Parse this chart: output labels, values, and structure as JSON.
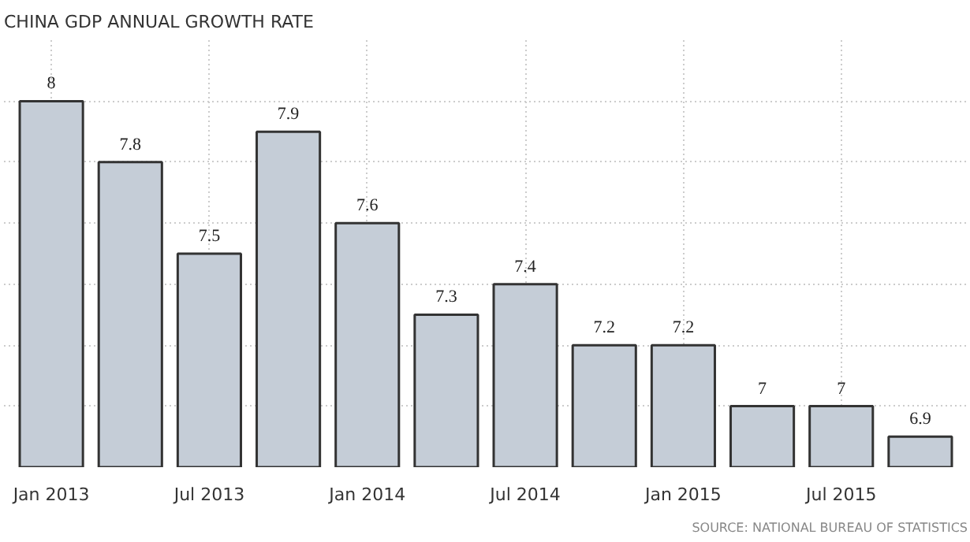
{
  "chart_data": {
    "type": "bar",
    "title": "CHINA GDP ANNUAL GROWTH RATE",
    "categories": [
      "Jan 2013",
      null,
      "Jul 2013",
      null,
      "Jan 2014",
      null,
      "Jul 2014",
      null,
      "Jan 2015",
      null,
      "Jul 2015",
      null
    ],
    "values": [
      8,
      7.8,
      7.5,
      7.9,
      7.6,
      7.3,
      7.4,
      7.2,
      7.2,
      7,
      7,
      6.9
    ],
    "color": "#c5cdd7",
    "ylim": [
      6.8,
      8.2
    ],
    "yticks": [
      {
        "value": 7.0,
        "label": null
      },
      {
        "value": 7.2,
        "label": null
      },
      {
        "value": 7.4,
        "label": null
      },
      {
        "value": 7.6,
        "label": null
      },
      {
        "value": 7.8,
        "label": null
      },
      {
        "value": 8.0,
        "label": null
      }
    ],
    "tick_labels": "x",
    "grid": true,
    "data_labels": true,
    "annotations": [
      "SOURCE: NATIONAL BUREAU OF STATISTICS"
    ]
  }
}
